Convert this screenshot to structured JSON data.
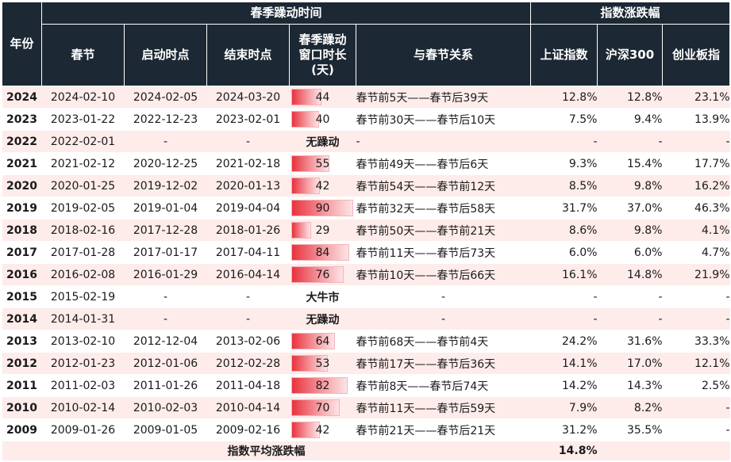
{
  "headers": {
    "year": "年份",
    "group_spring": "春季躁动时间",
    "group_index": "指数涨跌幅",
    "spring_festival": "春节",
    "start": "启动时点",
    "end": "结束时点",
    "duration_line1": "春季躁动",
    "duration_line2": "窗口时长",
    "duration_line3": "(天)",
    "relation": "与春节关系",
    "sh": "上证指数",
    "hs300": "沪深300",
    "cyb": "创业板指"
  },
  "rows": [
    {
      "year": "2024",
      "festival": "2024-02-10",
      "start": "2024-02-05",
      "end": "2024-03-20",
      "duration": "44",
      "duration_num": 44,
      "relation": "春节前5天——春节后39天",
      "sh": "12.8%",
      "hs300": "12.8%",
      "cyb": "23.1%"
    },
    {
      "year": "2023",
      "festival": "2023-01-22",
      "start": "2022-12-23",
      "end": "2023-02-01",
      "duration": "40",
      "duration_num": 40,
      "relation": "春节前30天——春节后10天",
      "sh": "7.5%",
      "hs300": "9.4%",
      "cyb": "13.9%"
    },
    {
      "year": "2022",
      "festival": "2022-02-01",
      "start": "-",
      "end": "-",
      "duration": "无躁动",
      "duration_num": 0,
      "relation": "-",
      "sh": "-",
      "hs300": "-",
      "cyb": "-"
    },
    {
      "year": "2021",
      "festival": "2021-02-12",
      "start": "2020-12-25",
      "end": "2021-02-18",
      "duration": "55",
      "duration_num": 55,
      "relation": "春节前49天——春节后6天",
      "sh": "9.3%",
      "hs300": "15.4%",
      "cyb": "17.7%"
    },
    {
      "year": "2020",
      "festival": "2020-01-25",
      "start": "2019-12-02",
      "end": "2020-01-13",
      "duration": "42",
      "duration_num": 42,
      "relation": "春节前54天——春节前12天",
      "sh": "8.5%",
      "hs300": "9.8%",
      "cyb": "16.2%"
    },
    {
      "year": "2019",
      "festival": "2019-02-05",
      "start": "2019-01-04",
      "end": "2019-04-04",
      "duration": "90",
      "duration_num": 90,
      "relation": "春节前32天——春节后58天",
      "sh": "31.7%",
      "hs300": "37.0%",
      "cyb": "46.3%"
    },
    {
      "year": "2018",
      "festival": "2018-02-16",
      "start": "2017-12-28",
      "end": "2018-01-26",
      "duration": "29",
      "duration_num": 29,
      "relation": "春节前50天——春节前21天",
      "sh": "8.6%",
      "hs300": "9.8%",
      "cyb": "4.1%"
    },
    {
      "year": "2017",
      "festival": "2017-01-28",
      "start": "2017-01-17",
      "end": "2017-04-11",
      "duration": "84",
      "duration_num": 84,
      "relation": "春节前11天——春节后73天",
      "sh": "6.0%",
      "hs300": "6.0%",
      "cyb": "4.7%"
    },
    {
      "year": "2016",
      "festival": "2016-02-08",
      "start": "2016-01-29",
      "end": "2016-04-14",
      "duration": "76",
      "duration_num": 76,
      "relation": "春节前10天——春节后66天",
      "sh": "16.1%",
      "hs300": "14.8%",
      "cyb": "21.9%"
    },
    {
      "year": "2015",
      "festival": "2015-02-19",
      "start": "-",
      "end": "-",
      "duration": "大牛市",
      "duration_num": 0,
      "relation": "-",
      "sh": "-",
      "hs300": "-",
      "cyb": "-"
    },
    {
      "year": "2014",
      "festival": "2014-01-31",
      "start": "-",
      "end": "-",
      "duration": "无躁动",
      "duration_num": 0,
      "relation": "-",
      "sh": "-",
      "hs300": "-",
      "cyb": "-"
    },
    {
      "year": "2013",
      "festival": "2013-02-10",
      "start": "2012-12-04",
      "end": "2013-02-06",
      "duration": "64",
      "duration_num": 64,
      "relation": "春节前68天——春节前4天",
      "sh": "24.2%",
      "hs300": "31.6%",
      "cyb": "33.3%"
    },
    {
      "year": "2012",
      "festival": "2012-01-23",
      "start": "2012-01-06",
      "end": "2012-02-28",
      "duration": "53",
      "duration_num": 53,
      "relation": "春节前17天——春节后36天",
      "sh": "14.1%",
      "hs300": "17.0%",
      "cyb": "12.1%"
    },
    {
      "year": "2011",
      "festival": "2011-02-03",
      "start": "2011-01-26",
      "end": "2011-04-18",
      "duration": "82",
      "duration_num": 82,
      "relation": "春节前8天——春节后74天",
      "sh": "14.2%",
      "hs300": "14.3%",
      "cyb": "2.5%"
    },
    {
      "year": "2010",
      "festival": "2010-02-14",
      "start": "2010-02-03",
      "end": "2010-04-14",
      "duration": "70",
      "duration_num": 70,
      "relation": "春节前11天——春节后59天",
      "sh": "7.9%",
      "hs300": "8.2%",
      "cyb": "-"
    },
    {
      "year": "2009",
      "festival": "2009-01-26",
      "start": "2009-01-05",
      "end": "2009-02-16",
      "duration": "42",
      "duration_num": 42,
      "relation": "春节前21天——春节后21天",
      "sh": "31.2%",
      "hs300": "35.5%",
      "cyb": "-"
    }
  ],
  "footer": {
    "label": "指数平均涨跌幅",
    "sh": "14.8%",
    "hs300": "",
    "cyb": ""
  },
  "bar_max": 90
}
